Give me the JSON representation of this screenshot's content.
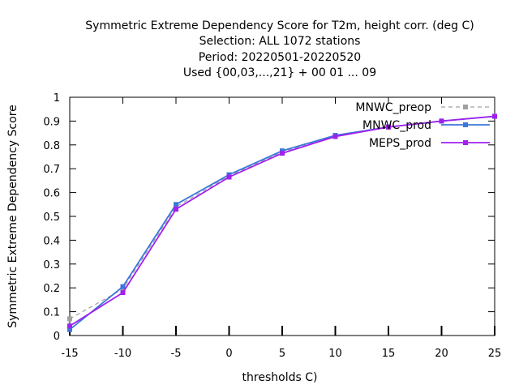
{
  "chart_data": {
    "type": "line",
    "title_lines": [
      "Symmetric Extreme Dependency Score  for T2m, height corr. (deg C)",
      "Selection: ALL    1072 stations",
      "Period: 20220501-20220520",
      "Used {00,03,...,21} + 00 01 ... 09"
    ],
    "xlabel": "thresholds C)",
    "ylabel": "Symmetric Extreme Dependency Score",
    "xlim": [
      -15,
      25
    ],
    "ylim": [
      0,
      1
    ],
    "x_ticks": [
      -15,
      -10,
      -5,
      0,
      5,
      10,
      15,
      20,
      25
    ],
    "y_ticks": [
      0,
      0.1,
      0.2,
      0.3,
      0.4,
      0.5,
      0.6,
      0.7,
      0.8,
      0.9,
      1
    ],
    "y_tick_labels": [
      "0",
      "0.1",
      "0.2",
      "0.3",
      "0.4",
      "0.5",
      "0.6",
      "0.7",
      "0.8",
      "0.9",
      "1"
    ],
    "legend_position": "top-right",
    "x": [
      -15,
      -10,
      -5,
      0,
      5,
      10,
      15,
      20,
      25
    ],
    "series": [
      {
        "name": "MNWC_preop",
        "color": "#a0a0a0",
        "dash": true,
        "values": [
          0.07,
          0.195,
          0.54,
          0.67,
          0.77,
          0.84,
          0.875,
          0.9,
          0.92
        ]
      },
      {
        "name": "MNWC_prod",
        "color": "#3a78d8",
        "dash": false,
        "values": [
          0.025,
          0.205,
          0.55,
          0.675,
          0.775,
          0.84,
          0.875,
          0.9,
          0.92
        ]
      },
      {
        "name": "MEPS_prod",
        "color": "#a020f0",
        "dash": false,
        "values": [
          0.04,
          0.18,
          0.53,
          0.665,
          0.765,
          0.835,
          0.875,
          0.9,
          0.92
        ]
      }
    ]
  }
}
